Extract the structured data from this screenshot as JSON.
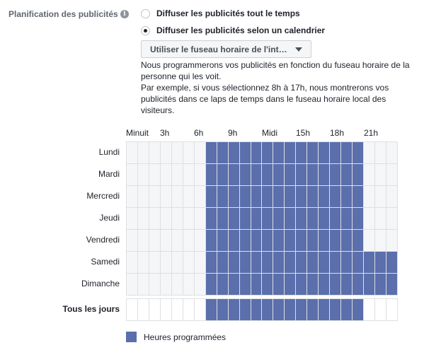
{
  "section": {
    "label": "Planification des publicités",
    "info_icon": "info-icon"
  },
  "options": [
    {
      "label": "Diffuser les publicités tout le temps",
      "checked": false
    },
    {
      "label": "Diffuser les publicités selon un calendrier",
      "checked": true
    }
  ],
  "timezone": {
    "selected": "Utiliser le fuseau horaire de l'int…",
    "caret_icon": "caret-down-icon"
  },
  "description": {
    "line1": "Nous programmerons vos publicités en fonction du fuseau horaire de la personne qui les voit.",
    "line2": "Par exemple, si vous sélectionnez 8h à 17h, nous montrerons vos publicités dans ce laps de temps dans le fuseau horaire local des visiteurs."
  },
  "schedule": {
    "hour_labels": [
      {
        "label": "Minuit",
        "hour": 0
      },
      {
        "label": "3h",
        "hour": 3
      },
      {
        "label": "6h",
        "hour": 6
      },
      {
        "label": "9h",
        "hour": 9
      },
      {
        "label": "Midi",
        "hour": 12
      },
      {
        "label": "15h",
        "hour": 15
      },
      {
        "label": "18h",
        "hour": 18
      },
      {
        "label": "21h",
        "hour": 21
      }
    ],
    "days": [
      {
        "name": "Lundi",
        "start": 7,
        "end": 21
      },
      {
        "name": "Mardi",
        "start": 7,
        "end": 21
      },
      {
        "name": "Mercredi",
        "start": 7,
        "end": 21
      },
      {
        "name": "Jeudi",
        "start": 7,
        "end": 21
      },
      {
        "name": "Vendredi",
        "start": 7,
        "end": 21
      },
      {
        "name": "Samedi",
        "start": 7,
        "end": 24
      },
      {
        "name": "Dimanche",
        "start": 7,
        "end": 24
      }
    ],
    "all_days": {
      "name": "Tous les jours",
      "start": 7,
      "end": 21
    }
  },
  "legend": {
    "label": "Heures programmées",
    "color": "#5a6fac"
  }
}
